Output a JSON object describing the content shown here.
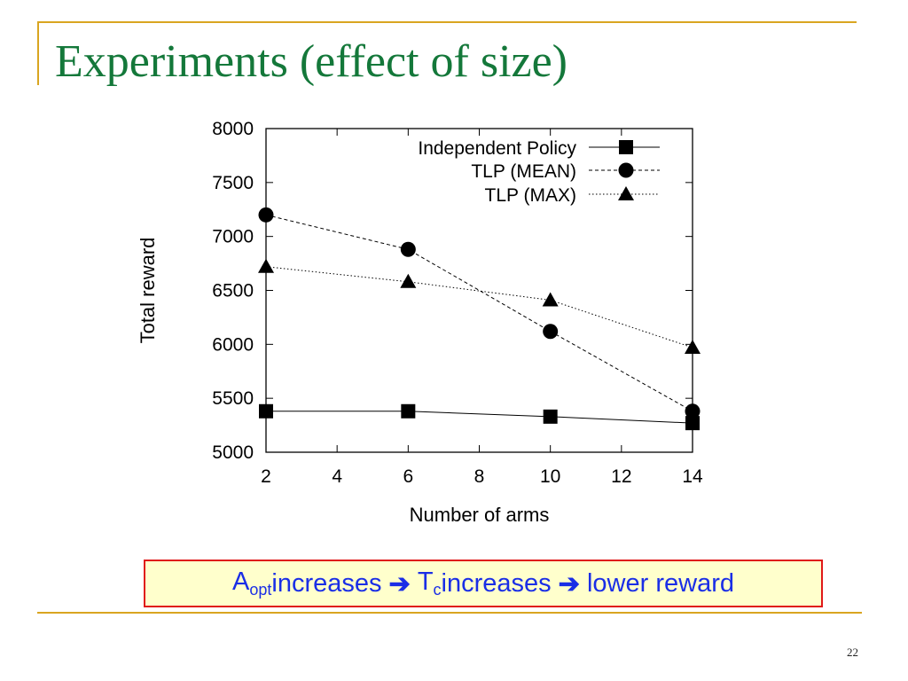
{
  "slide": {
    "title": "Experiments (effect of size)",
    "page_number": "22",
    "callout": {
      "a_main": "A",
      "a_sub": "opt",
      "text1": " increases",
      "arrow": "➔",
      "t_main": "T",
      "t_sub": "c",
      "text2": " increases",
      "text3": " lower reward"
    }
  },
  "colors": {
    "frame": "#d9a520",
    "title": "#14783a",
    "callout_text": "#1a2ee6",
    "callout_border": "#e01818",
    "callout_bg": "#ffffcc"
  },
  "chart_data": {
    "type": "line",
    "xlabel": "Number of arms",
    "ylabel": "Total reward",
    "x": [
      2,
      6,
      10,
      14
    ],
    "xlim": [
      2,
      14
    ],
    "ylim": [
      5000,
      8000
    ],
    "xticks": [
      2,
      4,
      6,
      8,
      10,
      12,
      14
    ],
    "yticks": [
      5000,
      5500,
      6000,
      6500,
      7000,
      7500,
      8000
    ],
    "grid": false,
    "legend_position": "top-right",
    "series": [
      {
        "name": "Independent Policy",
        "marker": "square",
        "line": "solid",
        "values": [
          5380,
          5380,
          5330,
          5270
        ]
      },
      {
        "name": "TLP (MEAN)",
        "marker": "circle",
        "line": "dashed",
        "values": [
          7200,
          6880,
          6120,
          5380
        ]
      },
      {
        "name": "TLP (MAX)",
        "marker": "triangle",
        "line": "dotted",
        "values": [
          6720,
          6580,
          6410,
          5970
        ]
      }
    ]
  }
}
